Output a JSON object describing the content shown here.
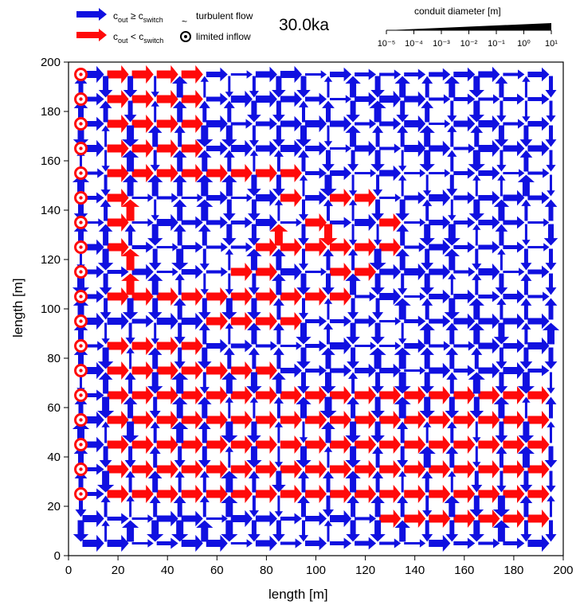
{
  "chart_data": {
    "type": "network-map",
    "time_label": "30.0ka",
    "xlabel": "length [m]",
    "ylabel": "length [m]",
    "xlim": [
      0,
      200
    ],
    "ylim": [
      0,
      200
    ],
    "xticks": [
      "0",
      "20",
      "40",
      "60",
      "80",
      "100",
      "120",
      "140",
      "160",
      "180",
      "200"
    ],
    "yticks": [
      "0",
      "20",
      "40",
      "60",
      "80",
      "100",
      "120",
      "140",
      "160",
      "180",
      "200"
    ],
    "grid": {
      "node_spacing_m": 10,
      "x_nodes": [
        5,
        195
      ],
      "y_nodes": [
        5,
        195
      ]
    },
    "colors": {
      "blue": "#1010e0",
      "red": "#ff0a0a",
      "node": "#ffffff"
    },
    "legend": {
      "blue_label_main": "c",
      "blue_label_sub": "out",
      "blue_label_rel": " ≥ c",
      "blue_label_sub2": "switch",
      "red_label_main": "c",
      "red_label_sub": "out",
      "red_label_rel": " < c",
      "red_label_sub2": "switch",
      "turbulent_symbol": "~",
      "turbulent_label": "turbulent flow",
      "limited_inflow_label": "limited inflow"
    },
    "diameter_scale": {
      "title": "conduit diameter [m]",
      "ticks": [
        "10⁻⁵",
        "10⁻⁴",
        "10⁻³",
        "10⁻²",
        "10⁻¹",
        "10⁰",
        "10¹"
      ]
    },
    "limited_inflow_y": [
      25,
      35,
      45,
      55,
      65,
      75,
      85,
      95,
      105,
      115,
      125,
      135,
      145,
      155,
      165,
      175,
      185,
      195
    ],
    "red_edges": [
      [
        1,
        19,
        2,
        19
      ],
      [
        2,
        19,
        3,
        19
      ],
      [
        3,
        19,
        4,
        19
      ],
      [
        4,
        19,
        5,
        19
      ],
      [
        5,
        19,
        4,
        18
      ],
      [
        1,
        18,
        2,
        18
      ],
      [
        2,
        18,
        3,
        18
      ],
      [
        3,
        18,
        4,
        18
      ],
      [
        4,
        18,
        5,
        18
      ],
      [
        5,
        18,
        4,
        17
      ],
      [
        1,
        17,
        2,
        17
      ],
      [
        2,
        17,
        3,
        17
      ],
      [
        3,
        17,
        4,
        17
      ],
      [
        4,
        17,
        5,
        17
      ],
      [
        1,
        16,
        2,
        16
      ],
      [
        2,
        16,
        3,
        16
      ],
      [
        3,
        16,
        4,
        16
      ],
      [
        4,
        16,
        5,
        16
      ],
      [
        5,
        16,
        4,
        15
      ],
      [
        1,
        15,
        2,
        15
      ],
      [
        2,
        15,
        3,
        15
      ],
      [
        3,
        15,
        4,
        15
      ],
      [
        4,
        15,
        5,
        15
      ],
      [
        5,
        15,
        6,
        15
      ],
      [
        6,
        15,
        7,
        15
      ],
      [
        7,
        15,
        8,
        15
      ],
      [
        8,
        15,
        9,
        15
      ],
      [
        1,
        14,
        2,
        14
      ],
      [
        2,
        14,
        2,
        13
      ],
      [
        8,
        14,
        9,
        14
      ],
      [
        9,
        14,
        8,
        13
      ],
      [
        10,
        14,
        11,
        14
      ],
      [
        11,
        14,
        12,
        14
      ],
      [
        1,
        13,
        2,
        13
      ],
      [
        8,
        13,
        8,
        12
      ],
      [
        9,
        13,
        10,
        13
      ],
      [
        10,
        13,
        10,
        12
      ],
      [
        12,
        13,
        13,
        13
      ],
      [
        13,
        13,
        12,
        12
      ],
      [
        1,
        12,
        2,
        12
      ],
      [
        2,
        12,
        2,
        11
      ],
      [
        7,
        12,
        8,
        12
      ],
      [
        8,
        12,
        9,
        12
      ],
      [
        9,
        12,
        10,
        12
      ],
      [
        10,
        12,
        11,
        12
      ],
      [
        11,
        12,
        12,
        12
      ],
      [
        12,
        12,
        13,
        12
      ],
      [
        13,
        12,
        12,
        11
      ],
      [
        2,
        11,
        2,
        10
      ],
      [
        6,
        11,
        7,
        11
      ],
      [
        7,
        11,
        8,
        11
      ],
      [
        8,
        11,
        7,
        10
      ],
      [
        10,
        11,
        11,
        11
      ],
      [
        11,
        11,
        12,
        11
      ],
      [
        12,
        11,
        11,
        10
      ],
      [
        1,
        10,
        2,
        10
      ],
      [
        2,
        10,
        3,
        10
      ],
      [
        3,
        10,
        4,
        10
      ],
      [
        4,
        10,
        5,
        10
      ],
      [
        5,
        10,
        6,
        10
      ],
      [
        6,
        10,
        7,
        10
      ],
      [
        7,
        10,
        8,
        10
      ],
      [
        8,
        10,
        9,
        10
      ],
      [
        9,
        10,
        10,
        10
      ],
      [
        10,
        10,
        11,
        10
      ],
      [
        11,
        10,
        10,
        9
      ],
      [
        5,
        9,
        6,
        9
      ],
      [
        6,
        9,
        7,
        9
      ],
      [
        7,
        9,
        8,
        9
      ],
      [
        8,
        9,
        9,
        9
      ],
      [
        1,
        8,
        2,
        8
      ],
      [
        2,
        8,
        3,
        8
      ],
      [
        3,
        8,
        4,
        8
      ],
      [
        4,
        8,
        5,
        8
      ],
      [
        5,
        8,
        4,
        7
      ],
      [
        1,
        7,
        2,
        7
      ],
      [
        2,
        7,
        3,
        7
      ],
      [
        3,
        7,
        4,
        7
      ],
      [
        4,
        7,
        5,
        7
      ],
      [
        5,
        7,
        6,
        7
      ],
      [
        6,
        7,
        7,
        7
      ],
      [
        7,
        7,
        8,
        7
      ],
      [
        1,
        6,
        2,
        6
      ],
      [
        2,
        6,
        3,
        6
      ],
      [
        3,
        6,
        4,
        6
      ],
      [
        4,
        6,
        5,
        6
      ],
      [
        5,
        6,
        6,
        6
      ],
      [
        6,
        6,
        7,
        6
      ],
      [
        7,
        6,
        8,
        6
      ],
      [
        8,
        6,
        9,
        6
      ],
      [
        9,
        6,
        10,
        6
      ],
      [
        10,
        6,
        11,
        6
      ],
      [
        11,
        6,
        12,
        6
      ],
      [
        12,
        6,
        13,
        6
      ],
      [
        13,
        6,
        14,
        6
      ],
      [
        14,
        6,
        15,
        6
      ],
      [
        15,
        6,
        16,
        6
      ],
      [
        16,
        6,
        17,
        6
      ],
      [
        17,
        6,
        18,
        6
      ],
      [
        18,
        6,
        19,
        6
      ],
      [
        1,
        5,
        2,
        5
      ],
      [
        2,
        5,
        3,
        5
      ],
      [
        3,
        5,
        4,
        5
      ],
      [
        4,
        5,
        5,
        5
      ],
      [
        5,
        5,
        6,
        5
      ],
      [
        6,
        5,
        7,
        5
      ],
      [
        7,
        5,
        8,
        5
      ],
      [
        8,
        5,
        9,
        5
      ],
      [
        9,
        5,
        10,
        5
      ],
      [
        10,
        5,
        11,
        5
      ],
      [
        11,
        5,
        12,
        5
      ],
      [
        12,
        5,
        13,
        5
      ],
      [
        13,
        5,
        14,
        5
      ],
      [
        14,
        5,
        15,
        5
      ],
      [
        15,
        5,
        16,
        5
      ],
      [
        16,
        5,
        17,
        5
      ],
      [
        17,
        5,
        18,
        5
      ],
      [
        18,
        5,
        19,
        5
      ],
      [
        1,
        4,
        2,
        4
      ],
      [
        2,
        4,
        3,
        4
      ],
      [
        3,
        4,
        4,
        4
      ],
      [
        4,
        4,
        5,
        4
      ],
      [
        5,
        4,
        6,
        4
      ],
      [
        6,
        4,
        7,
        4
      ],
      [
        7,
        4,
        8,
        4
      ],
      [
        8,
        4,
        9,
        4
      ],
      [
        9,
        4,
        10,
        4
      ],
      [
        10,
        4,
        11,
        4
      ],
      [
        11,
        4,
        12,
        4
      ],
      [
        12,
        4,
        13,
        4
      ],
      [
        13,
        4,
        14,
        4
      ],
      [
        14,
        4,
        15,
        4
      ],
      [
        15,
        4,
        16,
        4
      ],
      [
        16,
        4,
        17,
        4
      ],
      [
        17,
        4,
        18,
        4
      ],
      [
        18,
        4,
        19,
        4
      ],
      [
        1,
        3,
        2,
        3
      ],
      [
        2,
        3,
        3,
        3
      ],
      [
        3,
        3,
        4,
        3
      ],
      [
        4,
        3,
        5,
        3
      ],
      [
        5,
        3,
        6,
        3
      ],
      [
        6,
        3,
        7,
        3
      ],
      [
        7,
        3,
        8,
        3
      ],
      [
        8,
        3,
        9,
        3
      ],
      [
        9,
        3,
        10,
        3
      ],
      [
        10,
        3,
        11,
        3
      ],
      [
        11,
        3,
        12,
        3
      ],
      [
        12,
        3,
        13,
        3
      ],
      [
        13,
        3,
        14,
        3
      ],
      [
        14,
        3,
        15,
        3
      ],
      [
        15,
        3,
        16,
        3
      ],
      [
        16,
        3,
        17,
        3
      ],
      [
        17,
        3,
        18,
        3
      ],
      [
        18,
        3,
        19,
        3
      ],
      [
        1,
        2,
        2,
        2
      ],
      [
        2,
        2,
        3,
        2
      ],
      [
        3,
        2,
        4,
        2
      ],
      [
        4,
        2,
        5,
        2
      ],
      [
        5,
        2,
        6,
        2
      ],
      [
        6,
        2,
        7,
        2
      ],
      [
        7,
        2,
        8,
        2
      ],
      [
        8,
        2,
        9,
        2
      ],
      [
        9,
        2,
        10,
        2
      ],
      [
        10,
        2,
        11,
        2
      ],
      [
        11,
        2,
        12,
        2
      ],
      [
        12,
        2,
        13,
        2
      ],
      [
        13,
        2,
        14,
        2
      ],
      [
        14,
        2,
        15,
        2
      ],
      [
        15,
        2,
        16,
        2
      ],
      [
        16,
        2,
        17,
        2
      ],
      [
        17,
        2,
        18,
        2
      ],
      [
        18,
        2,
        19,
        2
      ],
      [
        17,
        1,
        18,
        1
      ],
      [
        18,
        1,
        19,
        1
      ],
      [
        19,
        1,
        18,
        0
      ],
      [
        16,
        1,
        17,
        1
      ],
      [
        15,
        1,
        16,
        1
      ],
      [
        14,
        1,
        15,
        1
      ],
      [
        13,
        1,
        14,
        1
      ],
      [
        12,
        1,
        13,
        1
      ]
    ]
  }
}
